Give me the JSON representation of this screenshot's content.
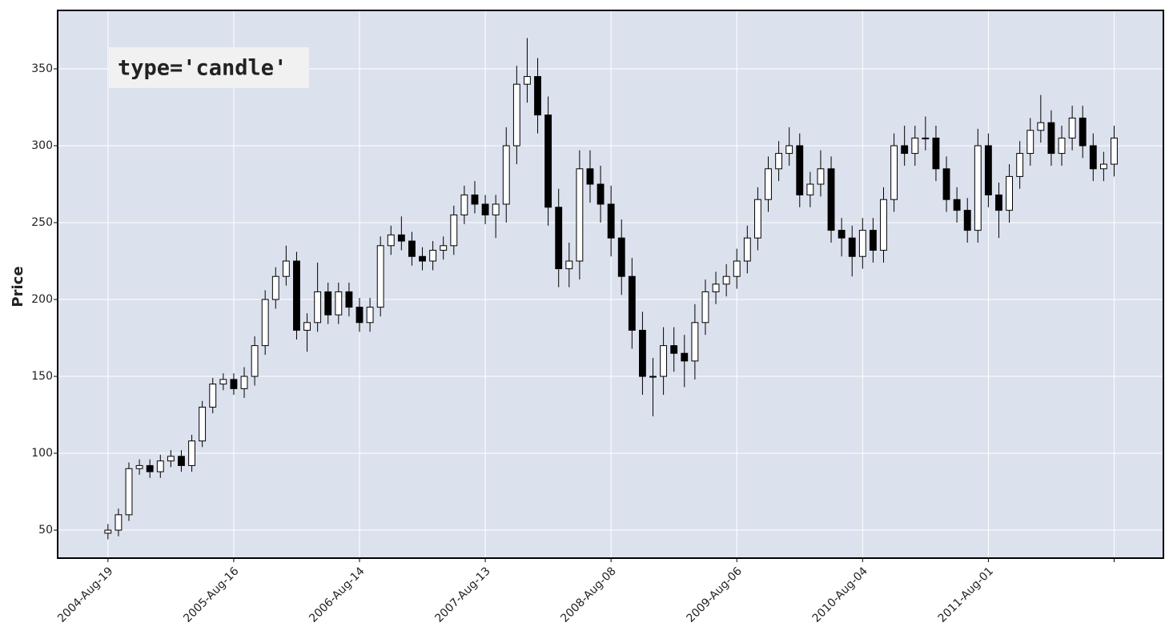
{
  "chart_data": {
    "type": "candlestick",
    "ylabel": "Price",
    "annotation": "type='candle'",
    "categories": [
      "2004-Aug-19",
      null,
      null,
      null,
      null,
      null,
      null,
      null,
      null,
      null,
      null,
      null,
      "2005-Aug-16",
      null,
      null,
      null,
      null,
      null,
      null,
      null,
      null,
      null,
      null,
      null,
      "2006-Aug-14",
      null,
      null,
      null,
      null,
      null,
      null,
      null,
      null,
      null,
      null,
      null,
      "2007-Aug-13",
      null,
      null,
      null,
      null,
      null,
      null,
      null,
      null,
      null,
      null,
      null,
      "2008-Aug-08",
      null,
      null,
      null,
      null,
      null,
      null,
      null,
      null,
      null,
      null,
      null,
      "2009-Aug-06",
      null,
      null,
      null,
      null,
      null,
      null,
      null,
      null,
      null,
      null,
      null,
      "2010-Aug-04",
      null,
      null,
      null,
      null,
      null,
      null,
      null,
      null,
      null,
      null,
      null,
      "2011-Aug-01",
      null,
      null,
      null,
      null,
      null,
      null,
      null,
      null,
      null,
      null,
      null,
      null
    ],
    "open": [
      48,
      50,
      60,
      90,
      92,
      88,
      95,
      98,
      92,
      108,
      130,
      145,
      148,
      142,
      150,
      170,
      200,
      215,
      225,
      180,
      185,
      205,
      190,
      205,
      195,
      185,
      195,
      235,
      242,
      238,
      228,
      225,
      232,
      235,
      255,
      268,
      262,
      255,
      262,
      300,
      340,
      345,
      320,
      260,
      220,
      225,
      285,
      275,
      262,
      240,
      215,
      180,
      150,
      150,
      170,
      165,
      160,
      185,
      205,
      210,
      215,
      225,
      240,
      265,
      285,
      295,
      300,
      268,
      275,
      285,
      245,
      240,
      228,
      245,
      232,
      265,
      300,
      295,
      305,
      305,
      285,
      265,
      258,
      245,
      300,
      268,
      258,
      280,
      295,
      310,
      315,
      295,
      305,
      318,
      300,
      285,
      288
    ],
    "high": [
      54,
      64,
      94,
      96,
      96,
      99,
      102,
      102,
      112,
      134,
      149,
      152,
      152,
      156,
      176,
      206,
      221,
      235,
      231,
      191,
      224,
      211,
      211,
      211,
      201,
      201,
      241,
      248,
      254,
      244,
      234,
      238,
      241,
      261,
      274,
      277,
      268,
      268,
      312,
      352,
      370,
      357,
      332,
      272,
      237,
      297,
      297,
      287,
      274,
      252,
      227,
      192,
      162,
      182,
      182,
      177,
      197,
      213,
      218,
      223,
      233,
      248,
      273,
      293,
      303,
      312,
      308,
      283,
      297,
      293,
      253,
      248,
      253,
      253,
      273,
      308,
      313,
      313,
      319,
      313,
      293,
      273,
      266,
      311,
      308,
      276,
      288,
      303,
      318,
      333,
      323,
      313,
      326,
      326,
      308,
      296,
      313
    ],
    "low": [
      44,
      46,
      56,
      86,
      84,
      84,
      91,
      88,
      88,
      104,
      126,
      141,
      138,
      136,
      144,
      164,
      194,
      209,
      174,
      166,
      179,
      184,
      184,
      189,
      179,
      179,
      189,
      229,
      232,
      222,
      219,
      219,
      226,
      229,
      249,
      256,
      249,
      240,
      250,
      288,
      328,
      308,
      248,
      208,
      208,
      213,
      263,
      250,
      228,
      203,
      168,
      138,
      124,
      138,
      153,
      143,
      148,
      177,
      197,
      202,
      207,
      217,
      232,
      257,
      277,
      287,
      260,
      260,
      267,
      237,
      228,
      215,
      220,
      224,
      224,
      257,
      287,
      287,
      297,
      277,
      257,
      250,
      237,
      237,
      260,
      240,
      250,
      272,
      287,
      302,
      287,
      287,
      297,
      292,
      277,
      277,
      280
    ],
    "close": [
      50,
      60,
      90,
      92,
      88,
      95,
      98,
      92,
      108,
      130,
      145,
      148,
      142,
      150,
      170,
      200,
      215,
      225,
      180,
      185,
      205,
      190,
      205,
      195,
      185,
      195,
      235,
      242,
      238,
      228,
      225,
      232,
      235,
      255,
      268,
      262,
      255,
      262,
      300,
      340,
      345,
      320,
      260,
      220,
      225,
      285,
      275,
      262,
      240,
      215,
      180,
      150,
      150,
      170,
      165,
      160,
      185,
      205,
      210,
      215,
      225,
      240,
      265,
      285,
      295,
      300,
      268,
      275,
      285,
      245,
      240,
      228,
      245,
      232,
      265,
      300,
      295,
      305,
      305,
      285,
      265,
      258,
      245,
      300,
      268,
      258,
      280,
      295,
      310,
      315,
      295,
      305,
      318,
      300,
      285,
      288,
      305
    ],
    "up_color": "#ffffff",
    "down_color": "#000000",
    "edge_color": "#000000",
    "xlim": [
      -4.8,
      100.7
    ],
    "xticks": [
      0,
      12,
      24,
      36,
      48,
      60,
      72,
      84,
      96
    ],
    "ylim": [
      31.8,
      388
    ],
    "yticks": [
      50,
      100,
      150,
      200,
      250,
      300,
      350
    ],
    "grid": true
  }
}
